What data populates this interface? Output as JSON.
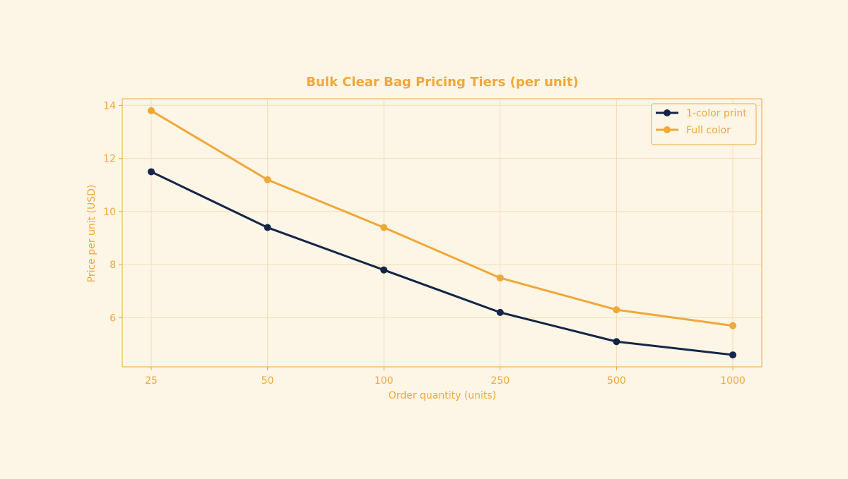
{
  "chart_data": {
    "type": "line",
    "title": "Bulk Clear Bag Pricing Tiers (per unit)",
    "xlabel": "Order quantity (units)",
    "ylabel": "Price per unit (USD)",
    "categories": [
      "25",
      "50",
      "100",
      "250",
      "500",
      "1000"
    ],
    "series": [
      {
        "name": "1-color print",
        "color": "#14254a",
        "values": [
          11.5,
          9.4,
          7.8,
          6.2,
          5.1,
          4.6
        ]
      },
      {
        "name": "Full color",
        "color": "#f0a83a",
        "values": [
          13.8,
          11.2,
          9.4,
          7.5,
          6.3,
          5.7
        ]
      }
    ],
    "yticks": [
      6,
      8,
      10,
      12,
      14
    ],
    "ylim": [
      4.15,
      14.25
    ],
    "grid": true,
    "legend_position": "top-right",
    "colors": {
      "background": "#fdf5e6",
      "accent": "#f0a83a",
      "grid": "#f7dcb8"
    }
  }
}
